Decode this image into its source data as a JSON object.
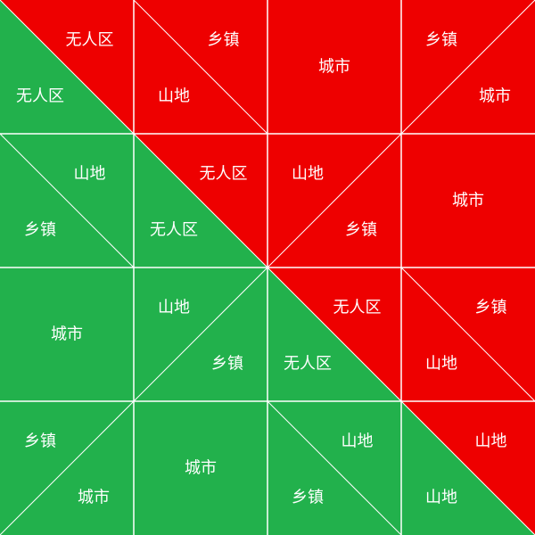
{
  "colors": {
    "red": "#EE0000",
    "green": "#22B14C",
    "line": "#ffffff"
  },
  "grid": {
    "rows": 4,
    "cols": 4,
    "cells": [
      {
        "row": 0,
        "col": 0,
        "diagonal": "backslash",
        "whole": false,
        "upper": {
          "color": "red",
          "label": "无人区"
        },
        "lower": {
          "color": "green",
          "label": "无人区"
        }
      },
      {
        "row": 0,
        "col": 1,
        "diagonal": "backslash",
        "whole": false,
        "upper": {
          "color": "red",
          "label": "乡镇"
        },
        "lower": {
          "color": "red",
          "label": "山地"
        }
      },
      {
        "row": 0,
        "col": 2,
        "whole": true,
        "fill": {
          "color": "red",
          "label": "城市"
        }
      },
      {
        "row": 0,
        "col": 3,
        "diagonal": "slash",
        "whole": false,
        "upper": {
          "color": "red",
          "label": "乡镇"
        },
        "lower": {
          "color": "red",
          "label": "城市"
        }
      },
      {
        "row": 1,
        "col": 0,
        "diagonal": "backslash",
        "whole": false,
        "upper": {
          "color": "green",
          "label": "山地"
        },
        "lower": {
          "color": "green",
          "label": "乡镇"
        }
      },
      {
        "row": 1,
        "col": 1,
        "diagonal": "backslash",
        "whole": false,
        "upper": {
          "color": "red",
          "label": "无人区"
        },
        "lower": {
          "color": "green",
          "label": "无人区"
        }
      },
      {
        "row": 1,
        "col": 2,
        "diagonal": "slash",
        "whole": false,
        "upper": {
          "color": "red",
          "label": "山地"
        },
        "lower": {
          "color": "red",
          "label": "乡镇"
        }
      },
      {
        "row": 1,
        "col": 3,
        "whole": true,
        "fill": {
          "color": "red",
          "label": "城市"
        }
      },
      {
        "row": 2,
        "col": 0,
        "whole": true,
        "fill": {
          "color": "green",
          "label": "城市"
        }
      },
      {
        "row": 2,
        "col": 1,
        "diagonal": "slash",
        "whole": false,
        "upper": {
          "color": "green",
          "label": "山地"
        },
        "lower": {
          "color": "green",
          "label": "乡镇"
        }
      },
      {
        "row": 2,
        "col": 2,
        "diagonal": "backslash",
        "whole": false,
        "upper": {
          "color": "red",
          "label": "无人区"
        },
        "lower": {
          "color": "green",
          "label": "无人区"
        }
      },
      {
        "row": 2,
        "col": 3,
        "diagonal": "backslash",
        "whole": false,
        "upper": {
          "color": "red",
          "label": "乡镇"
        },
        "lower": {
          "color": "red",
          "label": "山地"
        }
      },
      {
        "row": 3,
        "col": 0,
        "diagonal": "slash",
        "whole": false,
        "upper": {
          "color": "green",
          "label": "乡镇"
        },
        "lower": {
          "color": "green",
          "label": "城市"
        }
      },
      {
        "row": 3,
        "col": 1,
        "whole": true,
        "fill": {
          "color": "green",
          "label": "城市"
        }
      },
      {
        "row": 3,
        "col": 2,
        "diagonal": "backslash",
        "whole": false,
        "upper": {
          "color": "green",
          "label": "山地"
        },
        "lower": {
          "color": "green",
          "label": "乡镇"
        }
      },
      {
        "row": 3,
        "col": 3,
        "diagonal": "backslash",
        "whole": false,
        "upper": {
          "color": "red",
          "label": "山地"
        },
        "lower": {
          "color": "green",
          "label": "山地"
        }
      }
    ]
  }
}
